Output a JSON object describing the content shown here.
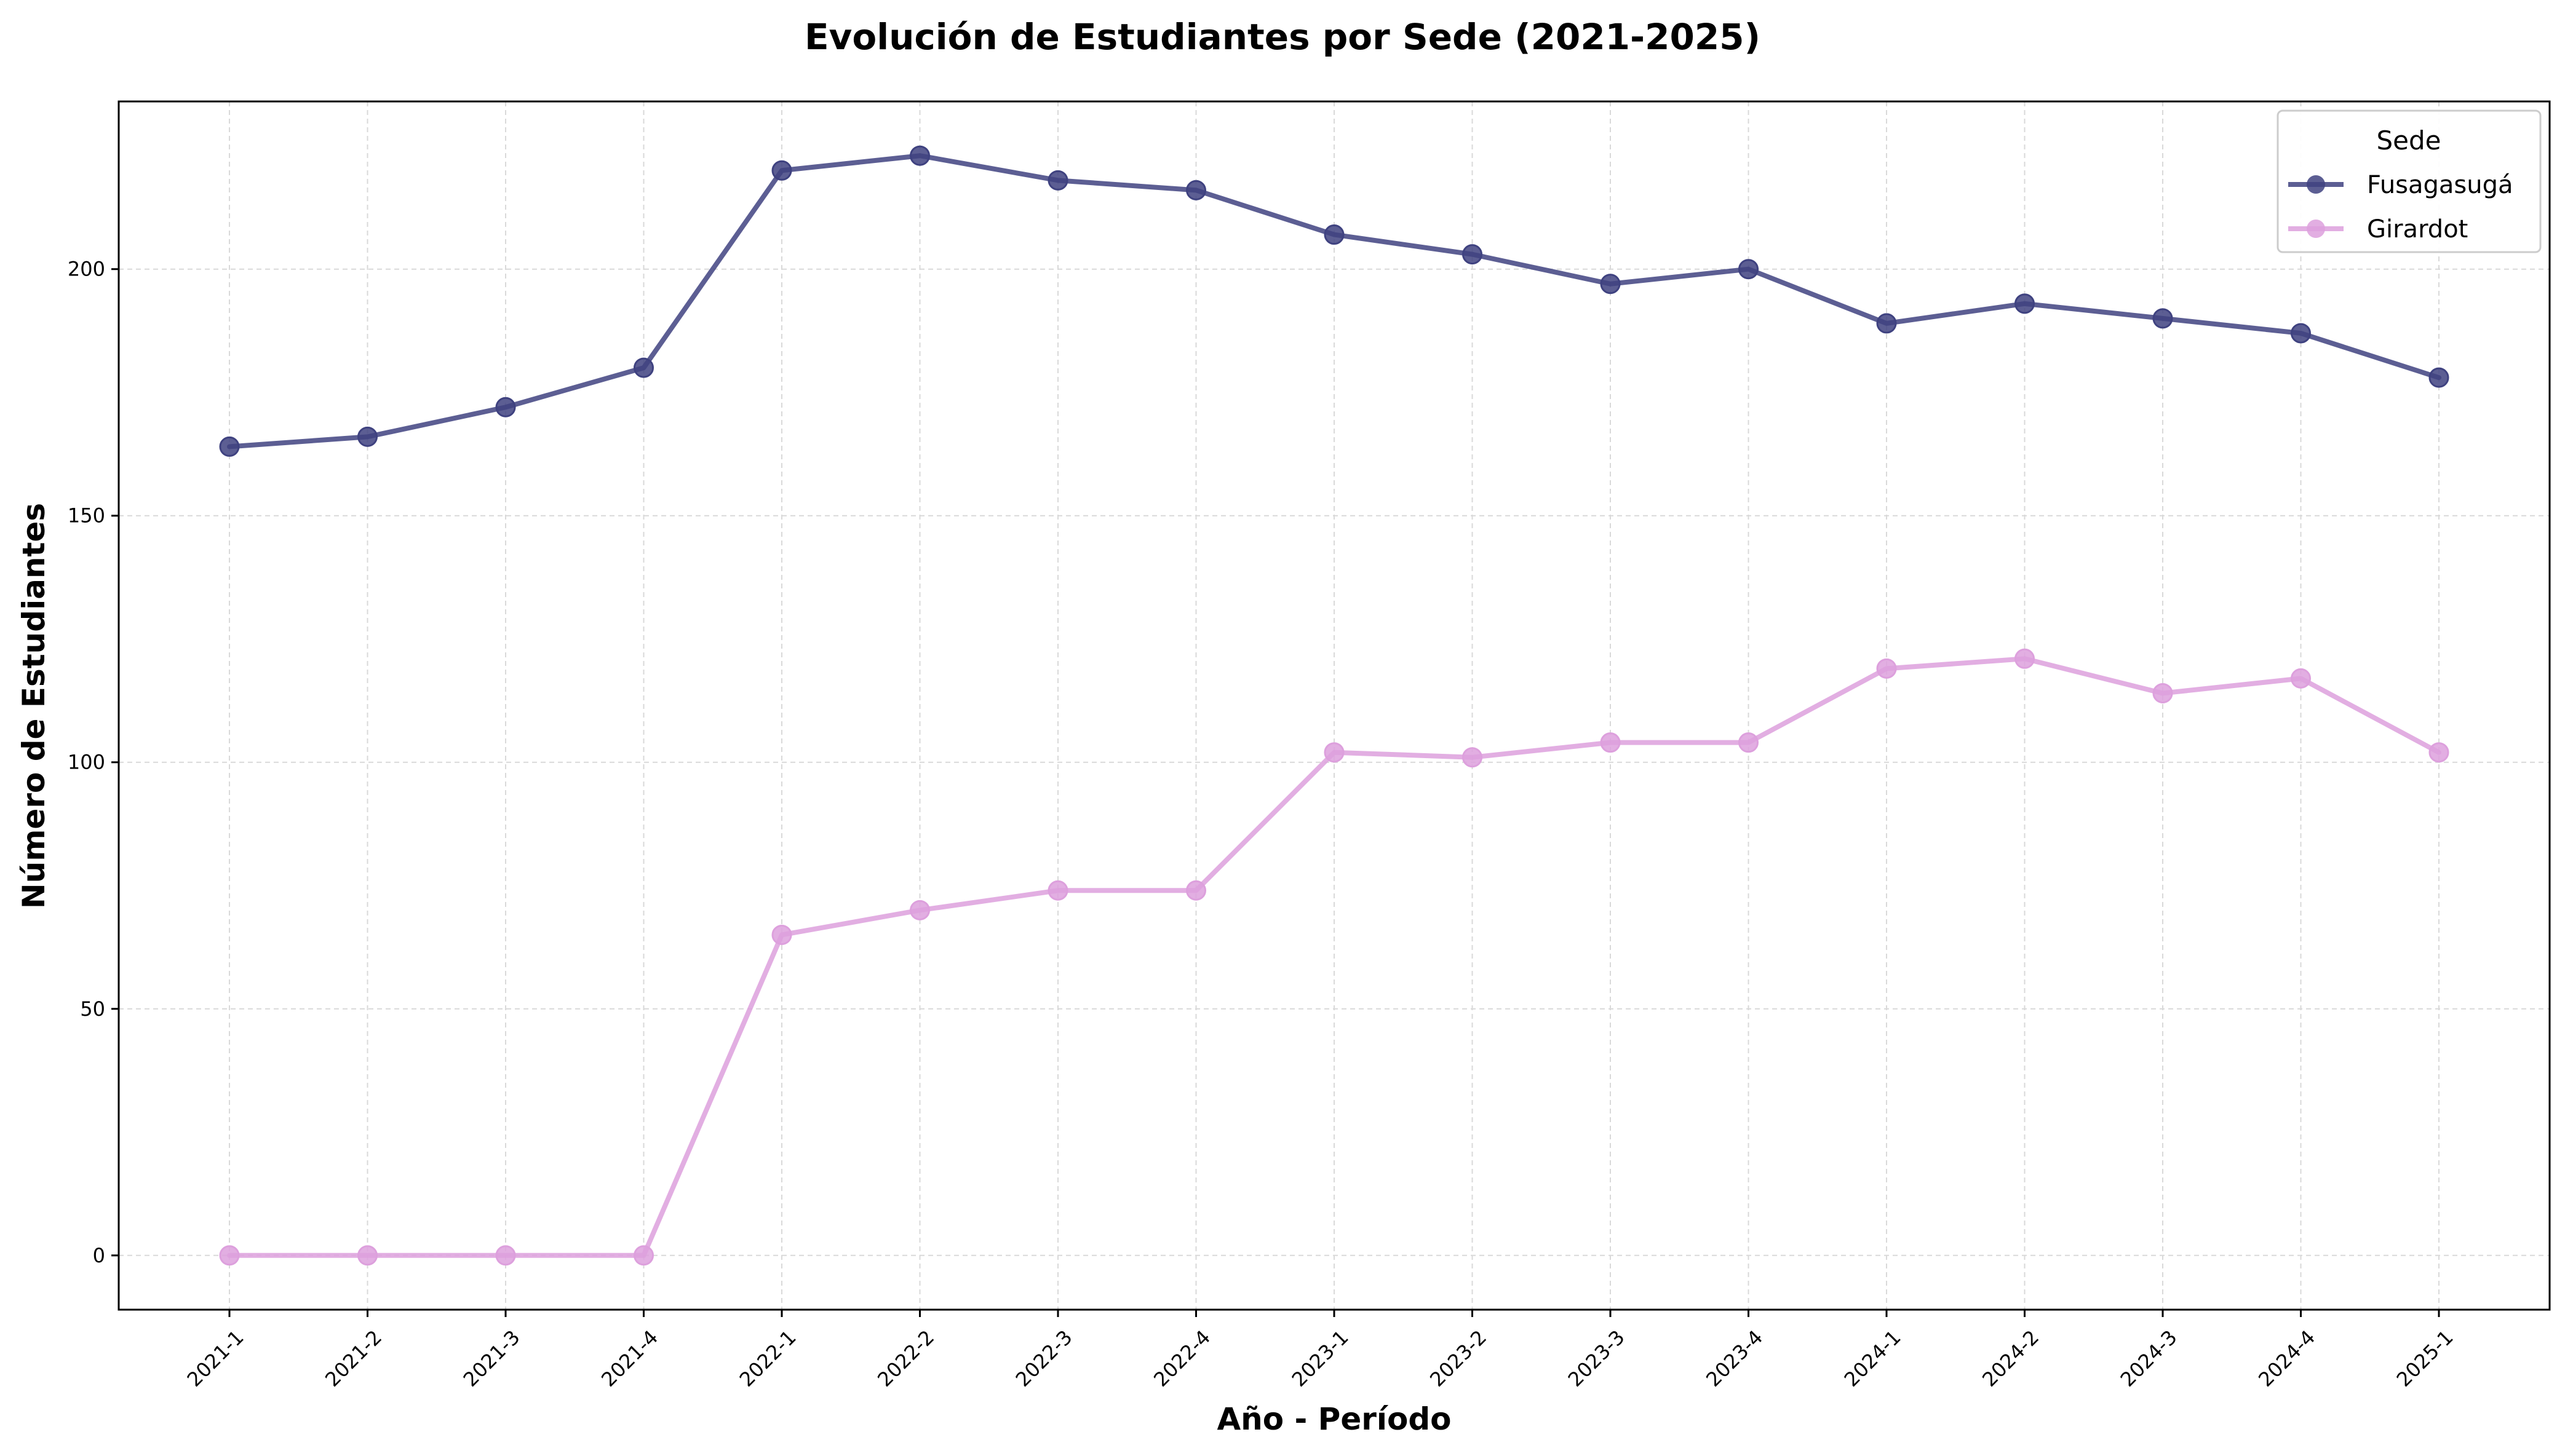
{
  "chart_data": {
    "type": "line",
    "title": "Evolución de Estudiantes por Sede (2021-2025)",
    "xlabel": "Año - Período",
    "ylabel": "Número de Estudiantes",
    "categories": [
      "2021-1",
      "2021-2",
      "2021-3",
      "2021-4",
      "2022-1",
      "2022-2",
      "2022-3",
      "2022-4",
      "2023-1",
      "2023-2",
      "2023-3",
      "2023-4",
      "2024-1",
      "2024-2",
      "2024-3",
      "2024-4",
      "2025-1"
    ],
    "ylim": [
      -11,
      234
    ],
    "yticks": [
      0,
      50,
      100,
      150,
      200
    ],
    "grid": true,
    "legend": {
      "title": "Sede",
      "position": "top-right"
    },
    "series": [
      {
        "name": "Fusagasugá",
        "color": "#3f4280",
        "values": [
          164,
          166,
          172,
          180,
          220,
          223,
          218,
          216,
          207,
          203,
          197,
          200,
          189,
          193,
          190,
          187,
          178
        ]
      },
      {
        "name": "Girardot",
        "color": "#dda0dd",
        "values": [
          0,
          0,
          0,
          0,
          65,
          70,
          74,
          74,
          102,
          101,
          104,
          104,
          119,
          121,
          114,
          117,
          102
        ]
      }
    ]
  }
}
